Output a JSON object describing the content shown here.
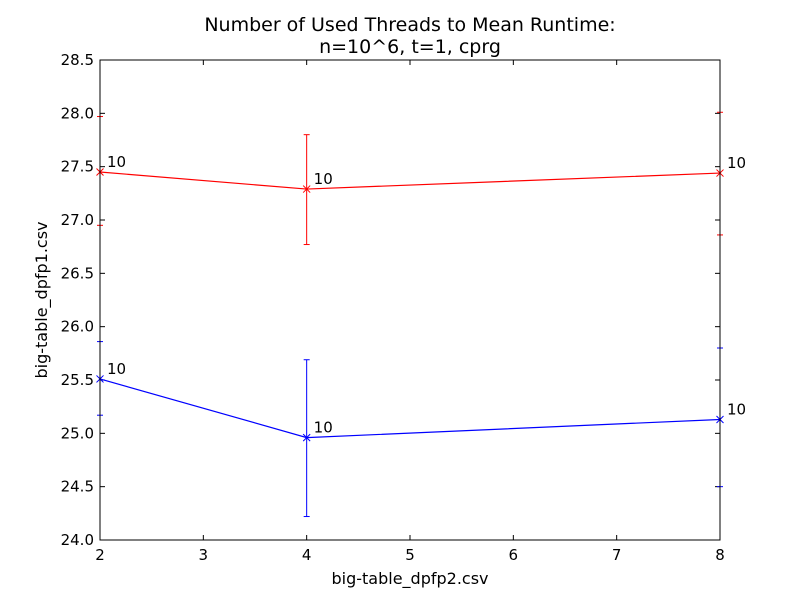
{
  "chart_data": {
    "type": "line",
    "title": "Number of Used Threads to Mean Runtime:",
    "subtitle": "n=10^6, t=1, cprg",
    "xlabel": "big-table_dpfp2.csv",
    "ylabel": "big-table_dpfp1.csv",
    "xlim": [
      2,
      8
    ],
    "ylim": [
      24.0,
      28.5
    ],
    "x_ticks": [
      "2",
      "3",
      "4",
      "5",
      "6",
      "7",
      "8"
    ],
    "y_ticks": [
      "24.0",
      "24.5",
      "25.0",
      "25.5",
      "26.0",
      "26.5",
      "27.0",
      "27.5",
      "28.0",
      "28.5"
    ],
    "grid": false,
    "series": [
      {
        "color": "#ff0000",
        "x": [
          2,
          4,
          8
        ],
        "y": [
          27.45,
          27.29,
          27.44
        ],
        "err_low": [
          26.95,
          26.77,
          26.86
        ],
        "err_high": [
          27.97,
          27.8,
          28.01
        ],
        "point_labels": [
          "10",
          "10",
          "10"
        ]
      },
      {
        "color": "#0000ff",
        "x": [
          2,
          4,
          8
        ],
        "y": [
          25.51,
          24.96,
          25.13
        ],
        "err_low": [
          25.17,
          24.22,
          24.5
        ],
        "err_high": [
          25.86,
          25.69,
          25.8
        ],
        "point_labels": [
          "10",
          "10",
          "10"
        ]
      }
    ]
  }
}
